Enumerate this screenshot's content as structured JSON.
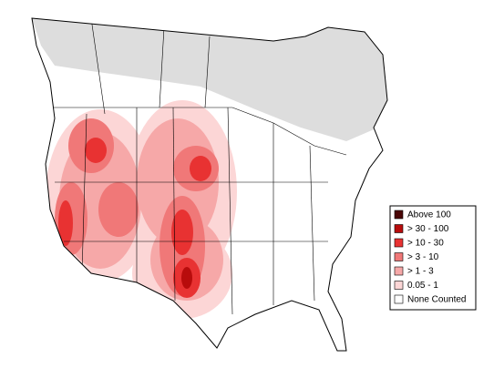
{
  "legend": {
    "items": [
      {
        "label": "Above 100",
        "color": "#4a0606"
      },
      {
        "label": "> 30 - 100",
        "color": "#b80c0c"
      },
      {
        "label": "> 10 - 30",
        "color": "#e83232"
      },
      {
        "label": "> 3 - 10",
        "color": "#f07878"
      },
      {
        "label": "> 1 - 3",
        "color": "#f6a8a8"
      },
      {
        "label": "0.05 - 1",
        "color": "#fcd6d6"
      },
      {
        "label": "None Counted",
        "color": "#ffffff"
      }
    ]
  }
}
